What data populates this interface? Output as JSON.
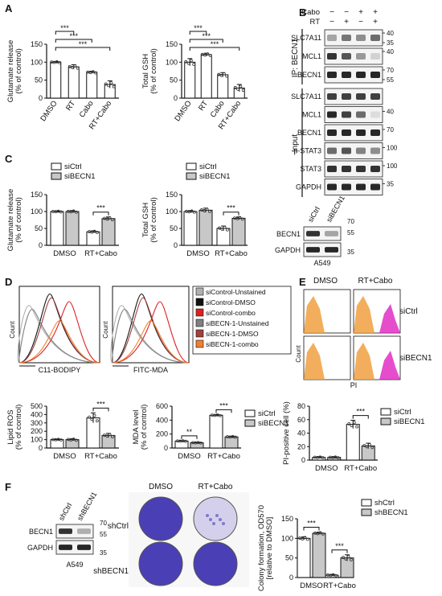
{
  "panels": {
    "A": "A",
    "B": "B",
    "C": "C",
    "D": "D",
    "E": "E",
    "F": "F"
  },
  "colors": {
    "white": "#ffffff",
    "gray": "#c8c8c8",
    "black": "#111111",
    "orange": "#f0a040",
    "magenta": "#e020c0",
    "purple": "#4b3fb5"
  },
  "chart_data": [
    {
      "id": "A1",
      "type": "bar",
      "ylabel": "Glutamate release\n(% of control)",
      "ylim": [
        0,
        150
      ],
      "yticks": [
        0,
        50,
        100,
        150
      ],
      "categories": [
        "DMSO",
        "RT",
        "Cabo",
        "RT+Cabo"
      ],
      "values": [
        100,
        87,
        72,
        38
      ],
      "errors": [
        2,
        6,
        3,
        10
      ],
      "sig": [
        "***",
        "***",
        "***"
      ]
    },
    {
      "id": "A2",
      "type": "bar",
      "ylabel": "Total GSH\n(% of control)",
      "ylim": [
        0,
        150
      ],
      "yticks": [
        0,
        50,
        100,
        150
      ],
      "categories": [
        "DMSO",
        "RT",
        "Cabo",
        "RT+Cabo"
      ],
      "values": [
        100,
        121,
        65,
        28
      ],
      "errors": [
        10,
        4,
        6,
        10
      ],
      "sig": [
        "***",
        "***",
        "***"
      ]
    },
    {
      "id": "C1",
      "type": "bar",
      "ylabel": "Glutamate release\n(% of control)",
      "ylim": [
        0,
        150
      ],
      "yticks": [
        0,
        50,
        100,
        150
      ],
      "categories": [
        "DMSO",
        "RT+Cabo"
      ],
      "series": [
        {
          "name": "siCtrl",
          "values": [
            100,
            40
          ],
          "errors": [
            2,
            3
          ]
        },
        {
          "name": "siBECN1",
          "values": [
            100,
            79
          ],
          "errors": [
            3,
            5
          ]
        }
      ],
      "sig": [
        "***"
      ]
    },
    {
      "id": "C2",
      "type": "bar",
      "ylabel": "Total GSH\n(% of control)",
      "ylim": [
        0,
        150
      ],
      "yticks": [
        0,
        50,
        100,
        150
      ],
      "categories": [
        "DMSO",
        "RT+Cabo"
      ],
      "series": [
        {
          "name": "siCtrl",
          "values": [
            100,
            50
          ],
          "errors": [
            3,
            7
          ]
        },
        {
          "name": "siBECN1",
          "values": [
            104,
            80
          ],
          "errors": [
            6,
            4
          ]
        }
      ],
      "sig": [
        "***"
      ]
    },
    {
      "id": "D1",
      "type": "bar",
      "ylabel": "Lipid ROS\n(% of control)",
      "ylim": [
        0,
        500
      ],
      "yticks": [
        0,
        100,
        200,
        300,
        400,
        500
      ],
      "categories": [
        "DMSO",
        "RT+Cabo"
      ],
      "series": [
        {
          "name": "siCtrl",
          "values": [
            100,
            360
          ],
          "errors": [
            6,
            60
          ]
        },
        {
          "name": "siBECN1",
          "values": [
            100,
            150
          ],
          "errors": [
            12,
            25
          ]
        }
      ],
      "sig": [
        "***"
      ]
    },
    {
      "id": "D2",
      "type": "bar",
      "ylabel": "MDA level\n(% of control)",
      "ylim": [
        0,
        600
      ],
      "yticks": [
        0,
        200,
        400,
        600
      ],
      "categories": [
        "DMSO",
        "RT+Cabo"
      ],
      "series": [
        {
          "name": "siCtrl",
          "values": [
            100,
            470
          ],
          "errors": [
            5,
            10
          ]
        },
        {
          "name": "siBECN1",
          "values": [
            75,
            160
          ],
          "errors": [
            5,
            8
          ]
        }
      ],
      "sig": [
        "**",
        "***"
      ]
    },
    {
      "id": "E1",
      "type": "bar",
      "ylabel": "PI-positive cell (%)",
      "ylim": [
        0,
        80
      ],
      "yticks": [
        0,
        20,
        40,
        60,
        80
      ],
      "categories": [
        "DMSO",
        "RT+Cabo"
      ],
      "series": [
        {
          "name": "siCtrl",
          "values": [
            4,
            53
          ],
          "errors": [
            1,
            6
          ]
        },
        {
          "name": "siBECN1",
          "values": [
            4,
            21
          ],
          "errors": [
            1,
            4
          ]
        }
      ],
      "sig": [
        "***"
      ]
    },
    {
      "id": "F1",
      "type": "bar",
      "ylabel": "Colony formation, OD570\n[relative to DMSO]",
      "ylim": [
        0,
        150
      ],
      "yticks": [
        0,
        50,
        100,
        150
      ],
      "categories": [
        "DMSO",
        "RT+Cabo"
      ],
      "series": [
        {
          "name": "shCtrl",
          "values": [
            100,
            6
          ],
          "errors": [
            4,
            2
          ]
        },
        {
          "name": "shBECN1",
          "values": [
            113,
            50
          ],
          "errors": [
            3,
            8
          ]
        }
      ],
      "sig": [
        "***",
        "***"
      ]
    }
  ],
  "blotB": {
    "cabo_label": "Cabo",
    "rt_label": "RT",
    "cabo_signs": [
      "−",
      "−",
      "+",
      "+"
    ],
    "rt_signs": [
      "−",
      "+",
      "−",
      "+"
    ],
    "ip_label": "IP: BECN1",
    "input_label": "Input",
    "ip_bands": [
      {
        "name": "SLC7A11",
        "mw": [
          "40",
          "35"
        ]
      },
      {
        "name": "MCL1",
        "mw": [
          "40"
        ]
      },
      {
        "name": "BECN1",
        "mw": [
          "70",
          "55"
        ]
      }
    ],
    "input_bands": [
      {
        "name": "SLC7A11",
        "mw": []
      },
      {
        "name": "MCL1",
        "mw": [
          "40"
        ]
      },
      {
        "name": "BECN1",
        "mw": [
          "70"
        ]
      },
      {
        "name": "p-STAT3",
        "mw": [
          "100"
        ]
      },
      {
        "name": "STAT3",
        "mw": [
          "100"
        ]
      },
      {
        "name": "GAPDH",
        "mw": [
          "35"
        ]
      }
    ]
  },
  "blotC": {
    "lanes": [
      "siCtrl",
      "siBECN1"
    ],
    "bands": [
      "BECN1",
      "GAPDH"
    ],
    "mw": [
      "70",
      "55",
      "35"
    ],
    "cell": "A549"
  },
  "blotF": {
    "lanes": [
      "shCtrl",
      "shBECN1"
    ],
    "bands": [
      "BECN1",
      "GAPDH"
    ],
    "mw": [
      "70",
      "55",
      "35"
    ],
    "cell": "A549"
  },
  "flowD": {
    "xlabel1": "C11-BODIPY",
    "xlabel2": "FITC-MDA",
    "ylabel": "Count",
    "legend": [
      "siControl-Unstained",
      "siControl-DMSO",
      "siControl-combo",
      "siBECN-1-Unstained",
      "siBECN-1-DMSO",
      "siBECN-1-combo"
    ],
    "legend_colors": [
      "#b0b0b0",
      "#111111",
      "#e02020",
      "#808080",
      "#a04040",
      "#f08030"
    ]
  },
  "flowE": {
    "cols": [
      "DMSO",
      "RT+Cabo"
    ],
    "rows": [
      "siCtrl",
      "siBECN1"
    ],
    "xlabel": "PI",
    "ylabel": "Count"
  },
  "colonyF": {
    "cols": [
      "DMSO",
      "RT+Cabo"
    ],
    "rows": [
      "shCtrl",
      "shBECN1"
    ]
  }
}
